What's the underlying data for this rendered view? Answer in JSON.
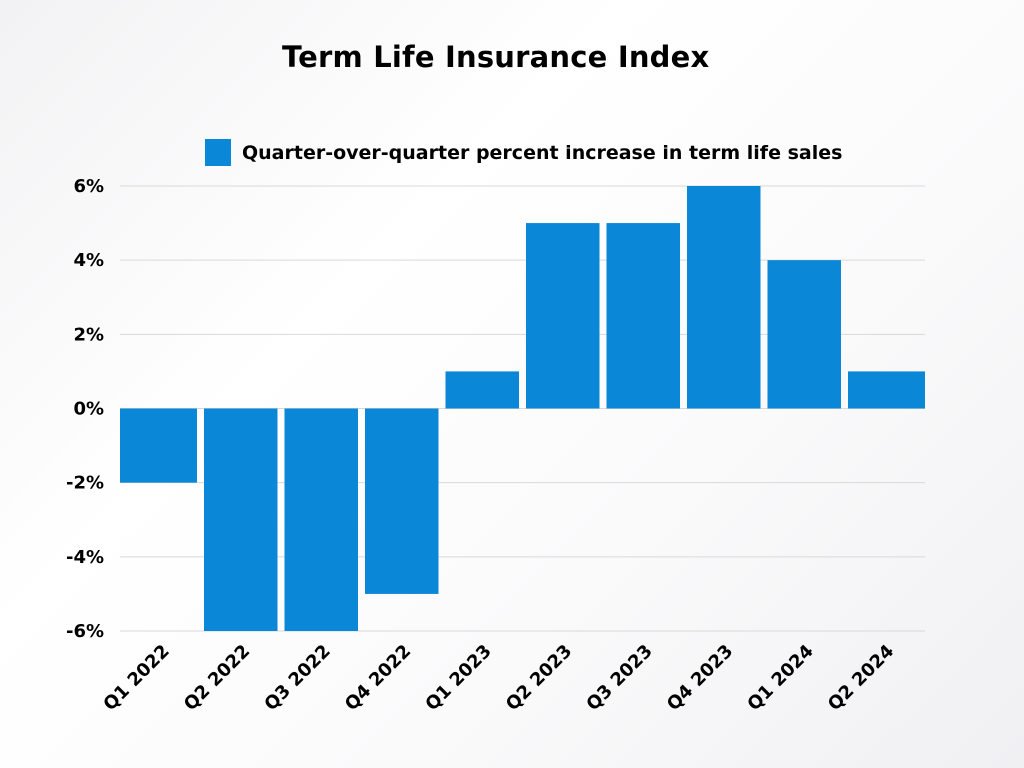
{
  "chart_data": {
    "type": "bar",
    "title": "Term Life Insurance Index",
    "categories": [
      "Q1 2022",
      "Q2 2022",
      "Q3 2022",
      "Q4 2022",
      "Q1 2023",
      "Q2 2023",
      "Q3 2023",
      "Q4 2023",
      "Q1 2024",
      "Q2 2024"
    ],
    "series": [
      {
        "name": "Quarter-over-quarter percent increase in term life sales",
        "values": [
          -2,
          -6,
          -6,
          -5,
          1,
          5,
          5,
          6,
          4,
          1
        ]
      }
    ],
    "ylim": [
      -6,
      6
    ],
    "yticks": [
      6,
      4,
      2,
      0,
      -2,
      -4,
      -6
    ],
    "ytick_labels": [
      "6%",
      "4%",
      "2%",
      "0%",
      "-2%",
      "-4%",
      "-6%"
    ],
    "xlabel": "",
    "ylabel": "",
    "grid": true,
    "legend_position": "top"
  },
  "colors": {
    "bar": "#0a87d6",
    "grid": "#d9d9d9",
    "axis": "#cfcfcf"
  }
}
